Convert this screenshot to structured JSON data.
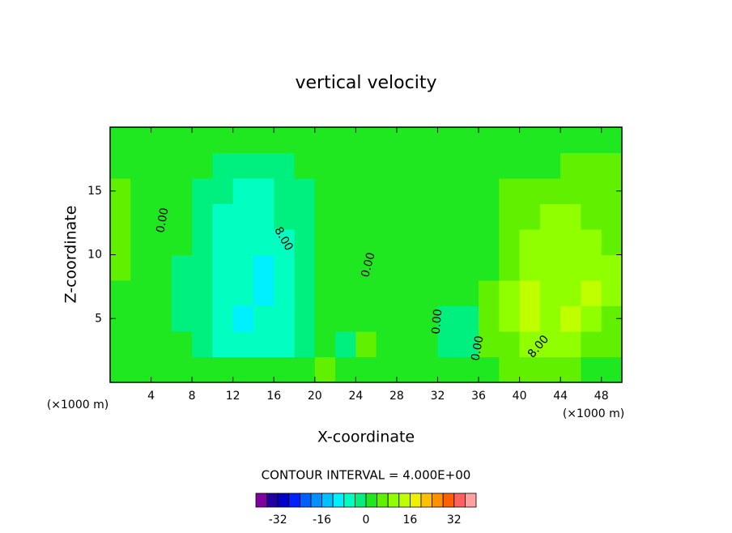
{
  "chart_data": {
    "type": "contour",
    "title": "vertical velocity",
    "x_label": "X-coordinate",
    "y_label": "Z-coordinate",
    "x_unit": "(×1000 m)",
    "contour_interval": "CONTOUR INTERVAL = 4.000E+00",
    "xlim": [
      0,
      50
    ],
    "ylim": [
      0,
      20
    ],
    "xticks": [
      4,
      8,
      12,
      16,
      20,
      24,
      28,
      32,
      36,
      40,
      44,
      48
    ],
    "yticks": [
      5,
      10,
      15
    ],
    "x": [
      1,
      3,
      5,
      7,
      9,
      11,
      13,
      15,
      17,
      19,
      21,
      23,
      25,
      27,
      29,
      31,
      33,
      35,
      37,
      39,
      41,
      43,
      45,
      47,
      49
    ],
    "y": [
      1,
      3,
      5,
      7,
      9,
      11,
      13,
      15,
      17,
      19
    ],
    "z": [
      [
        1,
        1,
        1,
        1,
        1,
        1,
        1,
        1,
        1,
        1,
        5,
        1,
        1,
        1,
        1,
        1,
        1,
        1,
        1,
        5,
        5,
        5,
        5,
        1,
        1
      ],
      [
        1,
        1,
        1,
        1,
        -2,
        -6,
        -6,
        -6,
        -6,
        -2,
        1,
        -2,
        5,
        1,
        1,
        1,
        -2,
        -2,
        5,
        5,
        10,
        10,
        10,
        5,
        5
      ],
      [
        1,
        1,
        1,
        -2,
        -2,
        -6,
        -10,
        -6,
        -6,
        -2,
        1,
        1,
        1,
        1,
        1,
        1,
        -2,
        -2,
        5,
        10,
        14,
        10,
        14,
        10,
        5
      ],
      [
        1,
        1,
        1,
        -2,
        -2,
        -6,
        -6,
        -10,
        -6,
        -2,
        1,
        1,
        1,
        1,
        1,
        1,
        1,
        1,
        5,
        10,
        14,
        10,
        10,
        14,
        10
      ],
      [
        5,
        1,
        1,
        -2,
        -2,
        -6,
        -6,
        -10,
        -6,
        -2,
        1,
        1,
        1,
        1,
        1,
        1,
        1,
        1,
        1,
        5,
        10,
        10,
        10,
        10,
        10
      ],
      [
        5,
        1,
        1,
        1,
        -2,
        -6,
        -6,
        -6,
        -6,
        -2,
        1,
        1,
        1,
        1,
        1,
        1,
        1,
        1,
        1,
        5,
        10,
        10,
        10,
        10,
        5
      ],
      [
        5,
        1,
        1,
        1,
        -2,
        -6,
        -6,
        -6,
        -2,
        -2,
        1,
        1,
        1,
        1,
        1,
        1,
        1,
        1,
        1,
        5,
        5,
        10,
        10,
        5,
        5
      ],
      [
        5,
        1,
        1,
        1,
        -2,
        -2,
        -6,
        -6,
        -2,
        -2,
        1,
        1,
        1,
        1,
        1,
        1,
        1,
        1,
        1,
        5,
        5,
        5,
        5,
        5,
        5
      ],
      [
        1,
        1,
        1,
        1,
        1,
        -2,
        -2,
        -2,
        -2,
        1,
        1,
        1,
        1,
        1,
        1,
        1,
        1,
        1,
        1,
        1,
        1,
        1,
        5,
        5,
        5
      ],
      [
        1,
        1,
        1,
        1,
        1,
        1,
        1,
        1,
        1,
        1,
        1,
        1,
        1,
        1,
        1,
        1,
        1,
        1,
        1,
        1,
        1,
        1,
        1,
        1,
        1
      ]
    ],
    "contour_labels": [
      "0.00",
      "8.00",
      "0.00",
      "0.00",
      "0.00",
      "8.00"
    ],
    "levels": [
      -40,
      -36,
      -32,
      -28,
      -24,
      -20,
      -16,
      -12,
      -8,
      -4,
      0,
      4,
      8,
      12,
      16,
      20,
      24,
      28,
      32,
      36,
      40
    ],
    "colors": [
      "#8000a0",
      "#2000a0",
      "#0000c8",
      "#0020ff",
      "#0060ff",
      "#0090ff",
      "#00c0ff",
      "#00f0ff",
      "#00ffc0",
      "#00f080",
      "#20e820",
      "#60f000",
      "#90ff00",
      "#c0ff00",
      "#f0f000",
      "#ffc000",
      "#ff9000",
      "#ff6000",
      "#ff6060",
      "#ffa0a0"
    ],
    "colorbar_ticks": [
      -32,
      -16,
      0,
      16,
      32
    ]
  }
}
